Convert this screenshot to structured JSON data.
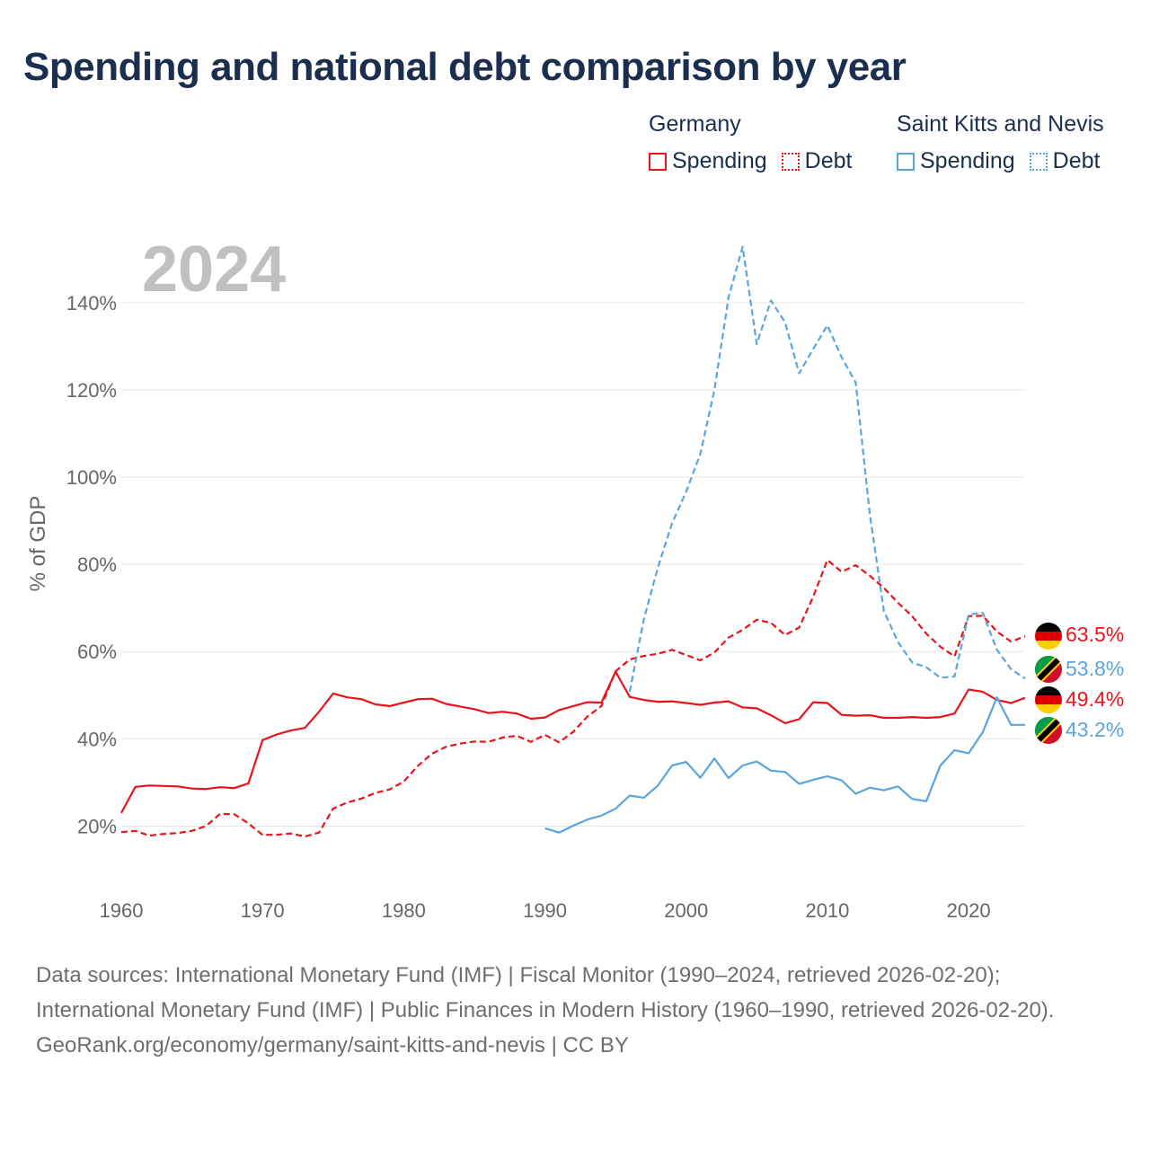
{
  "title": "Spending and national debt comparison by year",
  "year_watermark": "2024",
  "legend": [
    {
      "country": "Germany",
      "color": "#e8141a",
      "spending_label": "Spending",
      "debt_label": "Debt"
    },
    {
      "country": "Saint Kitts and Nevis",
      "color": "#5aa4e0",
      "spending_label": "Spending",
      "debt_label": "Debt"
    }
  ],
  "footer": {
    "sources": "Data sources: International Monetary Fund (IMF) | Fiscal Monitor (1990–2024, retrieved 2026-02-20); International Monetary Fund (IMF) | Public Finances in Modern History (1960–1990, retrieved 2026-02-20).",
    "credit": "GeoRank.org/economy/germany/saint-kitts-and-nevis | CC BY"
  },
  "chart_data": {
    "type": "line",
    "ylabel": "% of GDP",
    "xlim": [
      1960,
      2024
    ],
    "ylim": [
      10,
      155
    ],
    "x_ticks": [
      1960,
      1970,
      1980,
      1990,
      2000,
      2010,
      2020
    ],
    "y_ticks": [
      20,
      40,
      60,
      80,
      100,
      120,
      140
    ],
    "y_tick_labels": [
      "20%",
      "40%",
      "60%",
      "80%",
      "100%",
      "120%",
      "140%"
    ],
    "series": [
      {
        "name": "Germany Spending",
        "country": "Germany",
        "measure": "Spending",
        "color": "#e8141a",
        "dash": false,
        "start": 1960,
        "values": [
          23,
          29,
          29.3,
          29.2,
          29.1,
          28.6,
          28.5,
          28.9,
          28.7,
          29.8,
          39.7,
          41,
          41.9,
          42.5,
          46.2,
          50.4,
          49.5,
          49.1,
          47.9,
          47.5,
          48.3,
          49.1,
          49.2,
          48,
          47.4,
          46.8,
          45.9,
          46.2,
          45.8,
          44.6,
          44.9,
          46.6,
          47.5,
          48.4,
          48.3,
          55.4,
          49.6,
          48.9,
          48.5,
          48.6,
          48.2,
          47.8,
          48.3,
          48.6,
          47.2,
          47,
          45.4,
          43.6,
          44.5,
          48.4,
          48.2,
          45.5,
          45.3,
          45.4,
          44.8,
          44.8,
          45,
          44.8,
          45,
          45.8,
          51.3,
          50.8,
          48.9,
          48.2,
          49.4
        ]
      },
      {
        "name": "Germany Debt",
        "country": "Germany",
        "measure": "Debt",
        "color": "#e8141a",
        "dash": true,
        "start": 1960,
        "values": [
          18.6,
          18.9,
          17.8,
          18.2,
          18.4,
          18.9,
          20,
          22.8,
          22.7,
          20.6,
          18,
          18,
          18.3,
          17.6,
          18.5,
          24,
          25.4,
          26.3,
          27.6,
          28.4,
          30.2,
          33.8,
          36.6,
          38.2,
          38.9,
          39.4,
          39.3,
          40.3,
          40.7,
          39.3,
          40.9,
          39.2,
          41.6,
          45.1,
          47.5,
          55.5,
          58.2,
          59,
          59.5,
          60.4,
          59.2,
          58,
          59.8,
          63.2,
          65,
          67.3,
          66.6,
          63.8,
          65.5,
          72.6,
          81,
          78.3,
          79.8,
          77.4,
          74.6,
          71.2,
          68.1,
          64.1,
          61.1,
          58.9,
          68.1,
          68.2,
          64.6,
          62.3,
          63.5
        ]
      },
      {
        "name": "Saint Kitts and Nevis Spending",
        "country": "Saint Kitts and Nevis",
        "measure": "Spending",
        "color": "#5aa4e0",
        "dash": false,
        "start": 1990,
        "values": [
          19.5,
          18.5,
          20.1,
          21.5,
          22.4,
          24,
          27,
          26.5,
          29.3,
          33.9,
          34.7,
          31.1,
          35.5,
          31,
          33.9,
          34.8,
          32.7,
          32.4,
          29.7,
          30.6,
          31.4,
          30.5,
          27.4,
          28.8,
          28.2,
          29.1,
          26.2,
          25.7,
          33.9,
          37.4,
          36.7,
          41.5,
          49.5,
          43.2,
          43.2
        ]
      },
      {
        "name": "Saint Kitts and Nevis Debt",
        "country": "Saint Kitts and Nevis",
        "measure": "Debt",
        "color": "#5aa4e0",
        "dash": true,
        "start": 1996,
        "values": [
          50.8,
          67.4,
          79.3,
          89.4,
          96.7,
          105.3,
          120,
          141.2,
          152.8,
          130.5,
          140.5,
          135.5,
          123.8,
          129.4,
          134.8,
          127.5,
          121.7,
          91.6,
          69.3,
          62.2,
          57.5,
          56.4,
          54,
          54.3,
          68.5,
          68.9,
          60.4,
          56,
          53.8
        ]
      }
    ],
    "end_labels": [
      {
        "country": "Germany",
        "measure": "Debt",
        "value": 63.5,
        "text": "63.5%",
        "color": "#e8141a"
      },
      {
        "country": "Saint Kitts and Nevis",
        "measure": "Debt",
        "value": 53.8,
        "text": "53.8%",
        "color": "#5aa4e0"
      },
      {
        "country": "Germany",
        "measure": "Spending",
        "value": 49.4,
        "text": "49.4%",
        "color": "#e8141a"
      },
      {
        "country": "Saint Kitts and Nevis",
        "measure": "Spending",
        "value": 43.2,
        "text": "43.2%",
        "color": "#5aa4e0"
      }
    ]
  }
}
